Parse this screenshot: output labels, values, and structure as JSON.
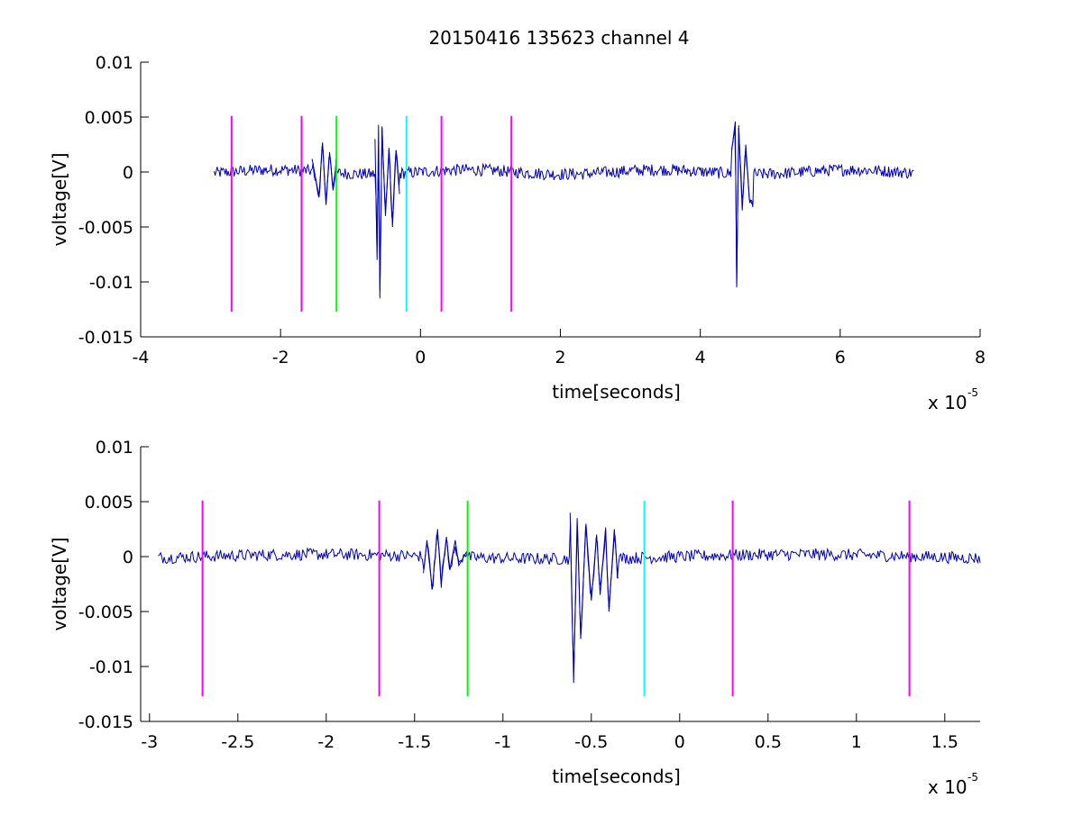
{
  "figure": {
    "title": "20150416 135623 channel 4"
  },
  "chart_data": [
    {
      "type": "line",
      "title": "20150416 135623 channel 4",
      "xlabel": "time[seconds]",
      "ylabel": "voltage[V]",
      "x_multiplier_label": "x 10",
      "x_multiplier_exp": "-5",
      "xlim": [
        -4,
        8
      ],
      "ylim": [
        -0.015,
        0.01
      ],
      "x_unit_scale": 1e-05,
      "xticks": [
        -4,
        -2,
        0,
        2,
        4,
        6,
        8
      ],
      "xtick_labels": [
        "-4",
        "-2",
        "0",
        "2",
        "4",
        "6",
        "8"
      ],
      "yticks": [
        0.01,
        0.005,
        0,
        -0.005,
        -0.01,
        -0.015
      ],
      "ytick_labels": [
        "0.01",
        "0.005",
        "0",
        "-0.005",
        "-0.01",
        "-0.015"
      ],
      "series": [
        {
          "color": "#0000b0",
          "x_range": [
            -2.95,
            7.05
          ],
          "bursts": [
            {
              "x": [
                -1.55,
                -1.45,
                -1.4,
                -1.35,
                -1.3,
                -1.25,
                -1.2
              ],
              "y": [
                0.0012,
                -0.0022,
                0.0027,
                -0.003,
                0.0018,
                -0.0015,
                0.001
              ]
            },
            {
              "x": [
                -0.65,
                -0.62,
                -0.6,
                -0.58,
                -0.55,
                -0.5,
                -0.45,
                -0.4,
                -0.35,
                -0.3
              ],
              "y": [
                0.003,
                -0.008,
                0.0043,
                -0.0115,
                0.004,
                -0.004,
                0.0022,
                -0.005,
                0.002,
                -0.002
              ]
            },
            {
              "x": [
                4.45,
                4.5,
                4.52,
                4.55,
                4.6,
                4.65,
                4.7,
                4.75
              ],
              "y": [
                0.002,
                0.0046,
                -0.0105,
                0.004,
                -0.0035,
                0.0025,
                -0.0025,
                -0.003
              ]
            }
          ]
        }
      ],
      "markers": [
        {
          "x": -2.7,
          "color": "#ff00ff",
          "ymin": -0.0127,
          "ymax": 0.0051
        },
        {
          "x": -1.7,
          "color": "#ff00ff",
          "ymin": -0.0127,
          "ymax": 0.0051
        },
        {
          "x": -1.2,
          "color": "#00ff00",
          "ymin": -0.0127,
          "ymax": 0.0051
        },
        {
          "x": -0.2,
          "color": "#00ffff",
          "ymin": -0.0127,
          "ymax": 0.0051
        },
        {
          "x": 0.3,
          "color": "#ff00ff",
          "ymin": -0.0127,
          "ymax": 0.0051
        },
        {
          "x": 1.3,
          "color": "#ff00ff",
          "ymin": -0.0127,
          "ymax": 0.0051
        }
      ]
    },
    {
      "type": "line",
      "title": "",
      "xlabel": "time[seconds]",
      "ylabel": "voltage[V]",
      "x_multiplier_label": "x 10",
      "x_multiplier_exp": "-5",
      "xlim": [
        -3.05,
        1.7
      ],
      "ylim": [
        -0.015,
        0.01
      ],
      "x_unit_scale": 1e-05,
      "xticks": [
        -3,
        -2.5,
        -2,
        -1.5,
        -1,
        -0.5,
        0,
        0.5,
        1,
        1.5
      ],
      "xtick_labels": [
        "-3",
        "-2.5",
        "-2",
        "-1.5",
        "-1",
        "-0.5",
        "0",
        "0.5",
        "1",
        "1.5"
      ],
      "yticks": [
        0.01,
        0.005,
        0,
        -0.005,
        -0.01,
        -0.015
      ],
      "ytick_labels": [
        "0.01",
        "0.005",
        "0",
        "-0.005",
        "-0.01",
        "-0.015"
      ],
      "series": [
        {
          "color": "#0000b0",
          "x_range": [
            -2.95,
            1.7
          ],
          "bursts": [
            {
              "x": [
                -1.45,
                -1.43,
                -1.4,
                -1.37,
                -1.35,
                -1.32,
                -1.3,
                -1.27,
                -1.25,
                -1.2
              ],
              "y": [
                -0.0015,
                0.0015,
                -0.003,
                0.0025,
                -0.0025,
                0.0018,
                -0.0012,
                0.0015,
                -0.0008,
                0.0006
              ]
            },
            {
              "x": [
                -0.62,
                -0.6,
                -0.58,
                -0.56,
                -0.53,
                -0.5,
                -0.47,
                -0.45,
                -0.42,
                -0.4,
                -0.37,
                -0.35
              ],
              "y": [
                0.004,
                -0.0115,
                0.0035,
                -0.0075,
                0.003,
                -0.004,
                0.002,
                -0.0035,
                0.0025,
                -0.005,
                0.0025,
                -0.002
              ]
            }
          ]
        }
      ],
      "markers": [
        {
          "x": -2.7,
          "color": "#ff00ff",
          "ymin": -0.0127,
          "ymax": 0.0051
        },
        {
          "x": -1.7,
          "color": "#ff00ff",
          "ymin": -0.0127,
          "ymax": 0.0051
        },
        {
          "x": -1.2,
          "color": "#00ff00",
          "ymin": -0.0127,
          "ymax": 0.0051
        },
        {
          "x": -0.2,
          "color": "#00ffff",
          "ymin": -0.0127,
          "ymax": 0.0051
        },
        {
          "x": 0.3,
          "color": "#ff00ff",
          "ymin": -0.0127,
          "ymax": 0.0051
        },
        {
          "x": 1.3,
          "color": "#ff00ff",
          "ymin": -0.0127,
          "ymax": 0.0051
        }
      ]
    }
  ]
}
